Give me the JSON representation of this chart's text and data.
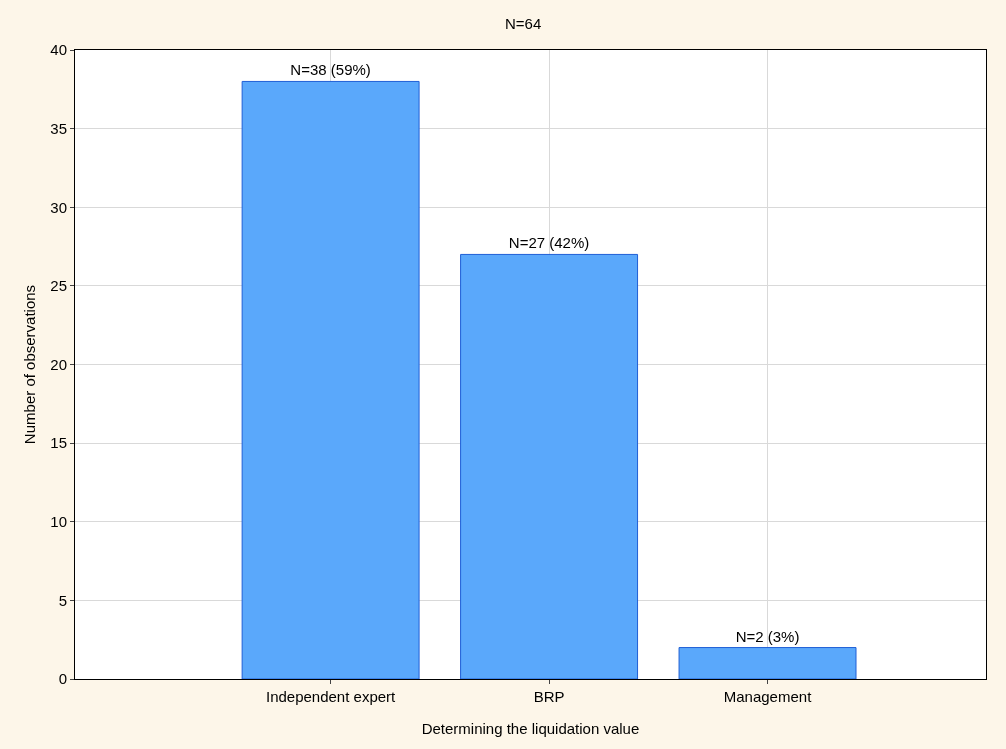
{
  "chart_data": {
    "type": "bar",
    "title": "N=64",
    "xlabel": "Determining the liquidation value",
    "ylabel": "Number of observations",
    "categories": [
      "Independent expert",
      "BRP",
      "Management"
    ],
    "values": [
      38,
      27,
      2
    ],
    "value_labels": [
      "N=38 (59%)",
      "N=27 (42%)",
      "N=2 (3%)"
    ],
    "color": "#5aa8fb",
    "ylim": [
      0,
      40
    ],
    "yticks": [
      0,
      5,
      10,
      15,
      20,
      25,
      30,
      35,
      40
    ],
    "grid": true,
    "legend": false
  }
}
